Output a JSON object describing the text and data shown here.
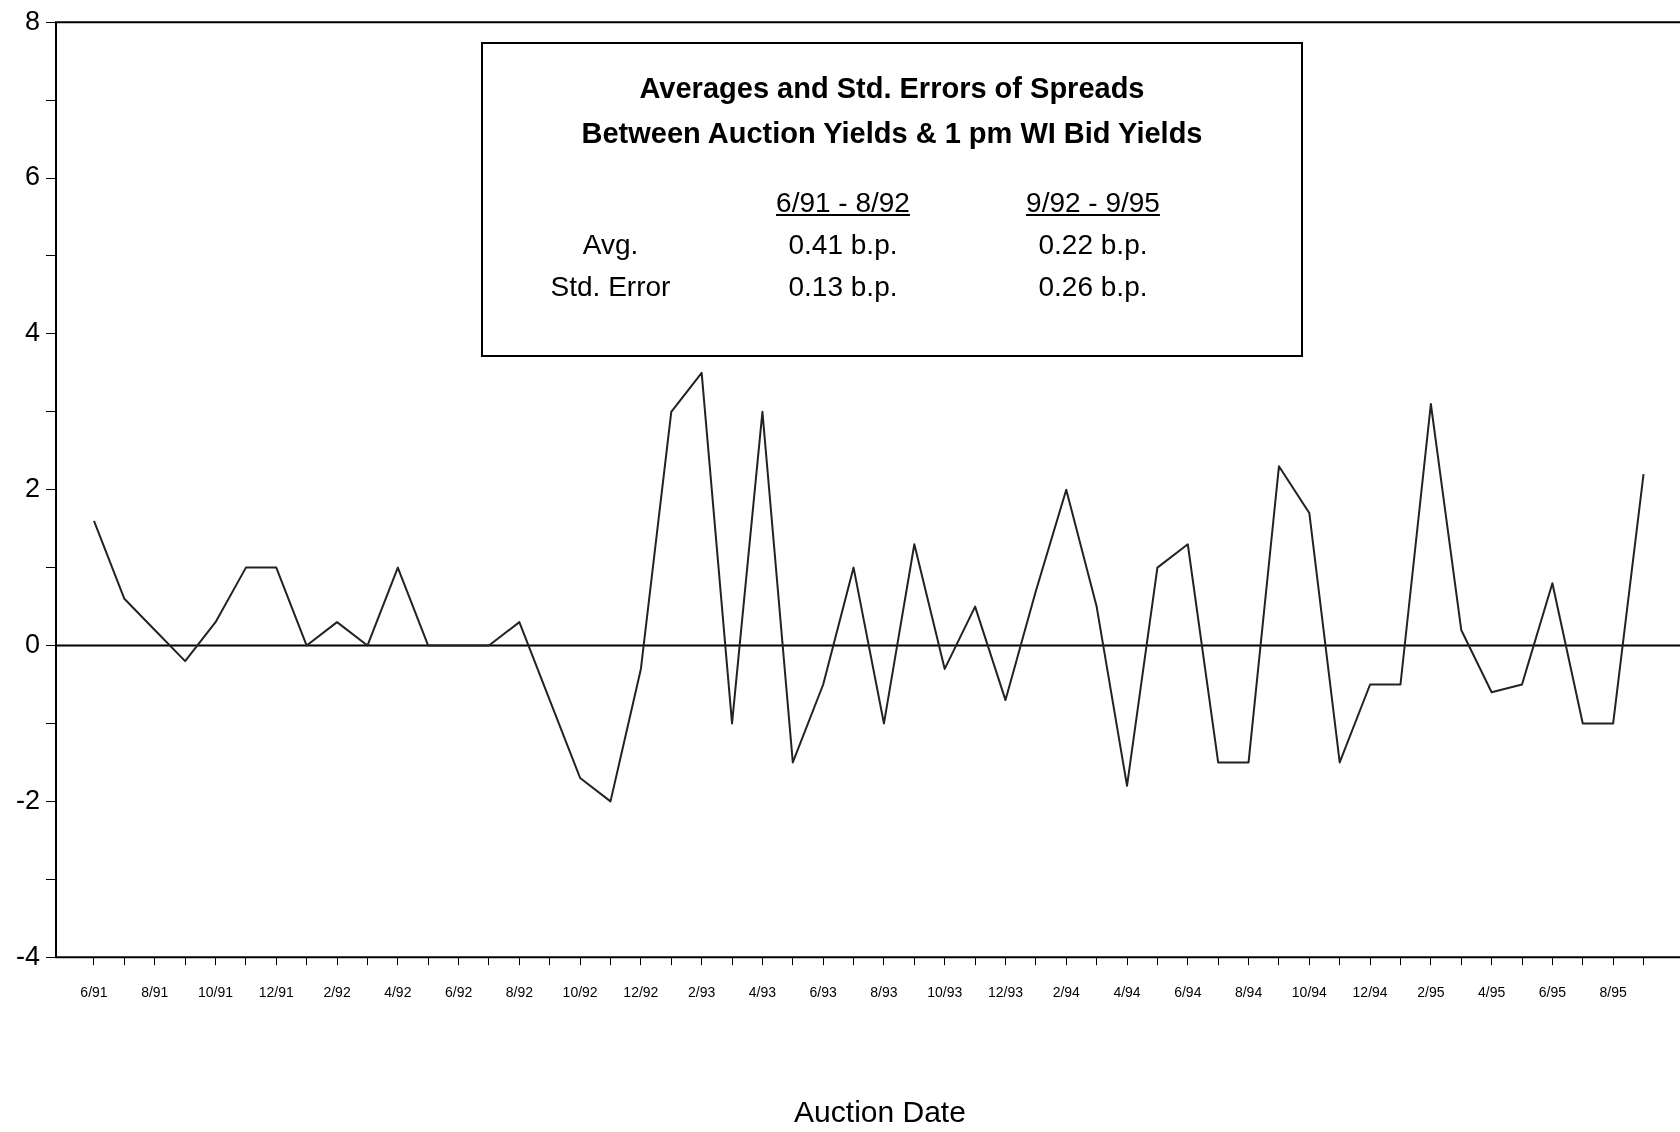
{
  "chart_data": {
    "type": "line",
    "title": "Averages and Std. Errors of Spreads\nBetween Auction Yields & 1 pm WI Bid Yields",
    "xlabel": "Auction Date",
    "categories": [
      "6/91",
      null,
      "8/91",
      null,
      "10/91",
      null,
      "12/91",
      null,
      "2/92",
      null,
      "4/92",
      null,
      "6/92",
      null,
      "8/92",
      null,
      "10/92",
      null,
      "12/92",
      null,
      "2/93",
      null,
      "4/93",
      null,
      "6/93",
      null,
      "8/93",
      null,
      "10/93",
      null,
      "12/93",
      null,
      "2/94",
      null,
      "4/94",
      null,
      "6/94",
      null,
      "8/94",
      null,
      "10/94",
      null,
      "12/94",
      null,
      "2/95",
      null,
      "4/95",
      null,
      "6/95",
      null,
      "8/95",
      null
    ],
    "series": [
      {
        "color": "#222222",
        "values": [
          1.6,
          0.6,
          0.2,
          -0.2,
          0.3,
          1.0,
          1.0,
          0,
          0.3,
          0,
          1.0,
          0,
          0,
          0,
          0.3,
          -0.7,
          -1.7,
          -2.0,
          -0.3,
          3.0,
          3.5,
          -1.0,
          3.0,
          -1.5,
          -0.5,
          1.0,
          -1.0,
          1.3,
          -0.3,
          0.5,
          -0.7,
          0.7,
          2.0,
          0.5,
          -1.8,
          1.0,
          1.3,
          -1.5,
          -1.5,
          2.3,
          1.7,
          -1.5,
          -0.5,
          -0.5,
          3.1,
          0.2,
          -0.6,
          -0.5,
          0.8,
          -1.0,
          -1.0,
          2.2
        ]
      }
    ],
    "ylim": [
      -4,
      8
    ],
    "yticks": [
      -4,
      {
        "value": -3,
        "label": null
      },
      -2,
      {
        "value": -1,
        "label": null
      },
      0,
      {
        "value": 1,
        "label": null
      },
      2,
      {
        "value": 3,
        "label": null
      },
      4,
      {
        "value": 5,
        "label": null
      },
      6,
      {
        "value": 7,
        "label": null
      },
      8
    ],
    "ref_lines": [
      {
        "axis": "y",
        "value": 0,
        "color": "#000000"
      }
    ],
    "annotations": [
      "6/91 - 8/92",
      "9/92 - 9/95",
      "Avg.",
      "0.41 b.p.",
      "0.22 b.p.",
      "Std. Error",
      "0.13 b.p.",
      "0.26 b.p."
    ],
    "grid": false,
    "legend": false,
    "marker": "none",
    "line_style": "solid"
  }
}
